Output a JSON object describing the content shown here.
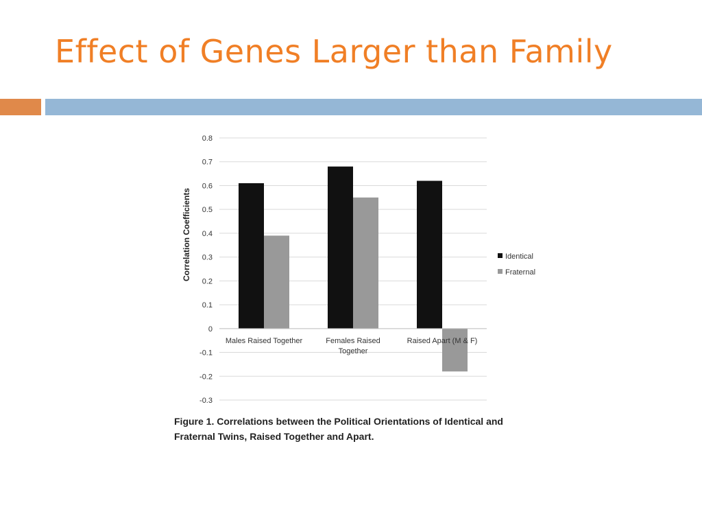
{
  "slide": {
    "title": "Effect of Genes Larger than Family",
    "title_color": "#f07f26",
    "accent_orange": "#e0894a",
    "accent_blue": "#95b7d6"
  },
  "chart_data": {
    "type": "bar",
    "categories": [
      [
        "Males Raised Together"
      ],
      [
        "Females Raised",
        "Together"
      ],
      [
        "Raised Apart (M & F)"
      ]
    ],
    "series": [
      {
        "name": "Identical",
        "values": [
          0.61,
          0.68,
          0.62
        ],
        "color": "#111111"
      },
      {
        "name": "Fraternal",
        "values": [
          0.39,
          0.55,
          -0.18
        ],
        "color": "#999999"
      }
    ],
    "ylabel": "Correlation Coefficients",
    "xlabel": "",
    "ylim": [
      -0.3,
      0.8
    ],
    "yticks": [
      "0.8",
      "0.7",
      "0.6",
      "0.5",
      "0.4",
      "0.3",
      "0.2",
      "0.1",
      "0",
      "-0.1",
      "-0.2",
      "-0.3"
    ],
    "grid": true,
    "legend": "right",
    "caption": [
      "Figure 1. Correlations between the Political Orientations of Identical and",
      "Fraternal Twins, Raised Together and Apart."
    ]
  }
}
